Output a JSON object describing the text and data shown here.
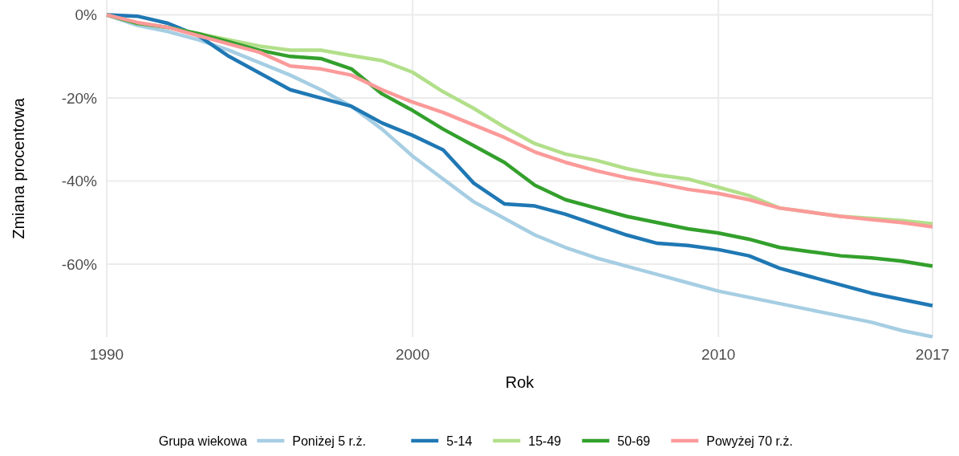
{
  "chart_data": {
    "type": "line",
    "xlabel": "Rok",
    "ylabel": "Zmiana procentowa",
    "legend_title": "Grupa wiekowa",
    "x": [
      1990,
      1991,
      1992,
      1993,
      1994,
      1995,
      1996,
      1997,
      1998,
      1999,
      2000,
      2001,
      2002,
      2003,
      2004,
      2005,
      2006,
      2007,
      2008,
      2009,
      2010,
      2011,
      2012,
      2013,
      2014,
      2015,
      2016,
      2017
    ],
    "xlim": [
      1990,
      2017
    ],
    "xticks": [
      1990,
      2000,
      2010,
      2017
    ],
    "ylim": [
      -77.6,
      3.6
    ],
    "yticks": [
      {
        "value": 0,
        "label": "0%"
      },
      {
        "value": -20,
        "label": "-20%"
      },
      {
        "value": -40,
        "label": "-40%"
      },
      {
        "value": -60,
        "label": "-60%"
      }
    ],
    "grid": true,
    "legend": "bottom",
    "marker": "none",
    "line_style": "solid",
    "series": [
      {
        "name": "Poniżej 5 r.ż.",
        "color": "#a6cee3",
        "values": [
          0,
          -2.5,
          -4,
          -6,
          -8.5,
          -11.5,
          -14.5,
          -18,
          -22,
          -27.5,
          -34,
          -39.5,
          -45,
          -49,
          -53,
          -56,
          -58.5,
          -60.5,
          -62.5,
          -64.5,
          -66.5,
          -68,
          -69.5,
          -71,
          -72.5,
          -74,
          -76,
          -77.5
        ]
      },
      {
        "name": "5-14",
        "color": "#1f78b4",
        "values": [
          0,
          -0.3,
          -2,
          -5,
          -10,
          -14,
          -18,
          -20,
          -22,
          -26,
          -29,
          -32.5,
          -40.5,
          -45.5,
          -46,
          -48,
          -50.5,
          -53,
          -55,
          -55.5,
          -56.5,
          -58,
          -61,
          -63,
          -65,
          -67,
          -68.5,
          -70
        ]
      },
      {
        "name": "15-49",
        "color": "#b2df8a",
        "values": [
          0,
          -2,
          -3,
          -4.5,
          -6,
          -7.5,
          -8.5,
          -8.5,
          -9.8,
          -11,
          -13.8,
          -18.5,
          -22.5,
          -27,
          -31,
          -33.5,
          -35,
          -37,
          -38.5,
          -39.5,
          -41.5,
          -43.5,
          -46.5,
          -47.5,
          -48.5,
          -49,
          -49.5,
          -50.3
        ]
      },
      {
        "name": "50-69",
        "color": "#33a02c",
        "values": [
          0,
          -2,
          -3,
          -4.5,
          -6.5,
          -8.5,
          -10,
          -10.5,
          -13,
          -19,
          -23,
          -27.5,
          -31.5,
          -35.5,
          -41,
          -44.5,
          -46.5,
          -48.5,
          -50,
          -51.5,
          -52.5,
          -54,
          -56,
          -57,
          -58,
          -58.5,
          -59.3,
          -60.5
        ]
      },
      {
        "name": "Powyżej 70 r.ż.",
        "color": "#fb9a99",
        "values": [
          0,
          -1.8,
          -3,
          -5,
          -7,
          -9,
          -12.3,
          -13,
          -14.5,
          -18,
          -21,
          -23.5,
          -26.5,
          -29.5,
          -33,
          -35.5,
          -37.5,
          -39.2,
          -40.5,
          -42,
          -43,
          -44.5,
          -46.5,
          -47.5,
          -48.5,
          -49.3,
          -50,
          -51
        ]
      }
    ]
  }
}
